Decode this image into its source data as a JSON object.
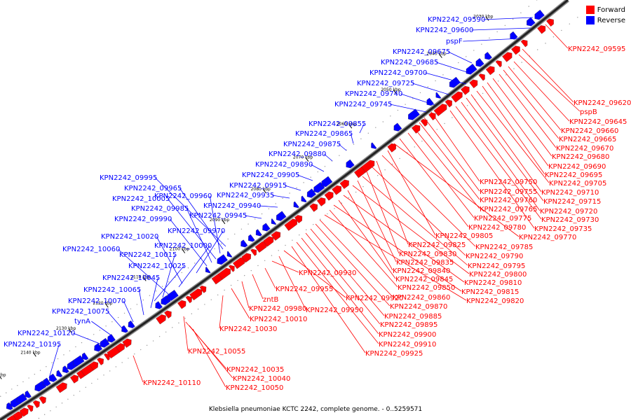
{
  "caption": "Klebsiella pneumoniae KCTC 2242, complete genome. - 0..5259571",
  "legend": [
    {
      "label": "Forward",
      "color": "#ff0000"
    },
    {
      "label": "Reverse",
      "color": "#0000ff"
    }
  ],
  "colors": {
    "forward": "#ff0000",
    "reverse": "#0000ff",
    "backbone": "#000000"
  },
  "ticks": [
    "2020 kbp",
    "2030 kbp",
    "2040 kbp",
    "2050 kbp",
    "2060 kbp",
    "2070 kbp",
    "2080 kbp",
    "2090 kbp",
    "2100 kbp",
    "2110 kbp",
    "2120 kbp",
    "2130 kbp",
    "2140 kbp",
    "2150 kbp"
  ],
  "reverse_labels": [
    "KPN2242_09590",
    "KPN2242_09600",
    "pspF",
    "KPN2242_09675",
    "KPN2242_09685",
    "KPN2242_09700",
    "KPN2242_09725",
    "KPN2242_09740",
    "KPN2242_09745",
    "KPN2242_09855",
    "KPN2242_09865",
    "KPN2242_09875",
    "KPN2242_09880",
    "KPN2242_09890",
    "KPN2242_09905",
    "KPN2242_09915",
    "KPN2242_09935",
    "KPN2242_09940",
    "KPN2242_09945",
    "KPN2242_09995",
    "KPN2242_09965",
    "KPN2242_09960",
    "KPN2242_10005",
    "KPN2242_09985",
    "KPN2242_09990",
    "KPN2242_09970",
    "KPN2242_10020",
    "KPN2242_10000",
    "KPN2242_10060",
    "KPN2242_10015",
    "KPN2242_10025",
    "KPN2242_10045",
    "KPN2242_10065",
    "KPN2242_10070",
    "KPN2242_10075",
    "tynA",
    "KPN2242_10120",
    "KPN2242_10195"
  ],
  "forward_labels": [
    "KPN2242_09595",
    "KPN2242_09620",
    "pspB",
    "KPN2242_09645",
    "KPN2242_09660",
    "KPN2242_09665",
    "KPN2242_09670",
    "KPN2242_09680",
    "KPN2242_09690",
    "KPN2242_09695",
    "KPN2242_09705",
    "KPN2242_09710",
    "KPN2242_09715",
    "KPN2242_09720",
    "KPN2242_09730",
    "KPN2242_09735",
    "KPN2242_09750",
    "KPN2242_09755",
    "KPN2242_09760",
    "KPN2242_09765",
    "KPN2242_09775",
    "KPN2242_09780",
    "KPN2242_09770",
    "KPN2242_09805",
    "KPN2242_09785",
    "KPN2242_09825",
    "KPN2242_09790",
    "KPN2242_09830",
    "KPN2242_09795",
    "KPN2242_09835",
    "KPN2242_09800",
    "KPN2242_09840",
    "KPN2242_09810",
    "KPN2242_09845",
    "KPN2242_09815",
    "KPN2242_09850",
    "KPN2242_09820",
    "KPN2242_09860",
    "KPN2242_09870",
    "KPN2242_09885",
    "KPN2242_09895",
    "KPN2242_09900",
    "KPN2242_09910",
    "KPN2242_09925",
    "KPN2242_09920",
    "KPN2242_09950",
    "KPN2242_09930",
    "KPN2242_09955",
    "zntB",
    "KPN2242_09980",
    "KPN2242_10010",
    "KPN2242_10030",
    "KPN2242_10055",
    "KPN2242_10035",
    "KPN2242_10040",
    "KPN2242_10050",
    "KPN2242_10110"
  ]
}
